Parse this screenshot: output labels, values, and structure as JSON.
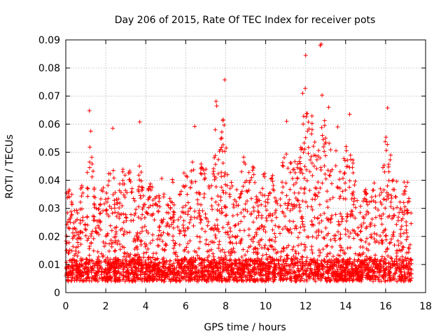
{
  "chart_data": {
    "type": "scatter",
    "title": "Day 206 of 2015, Rate Of TEC Index for receiver pots",
    "xlabel": "GPS time / hours",
    "ylabel": "ROTI / TECUs",
    "xlim": [
      0,
      18
    ],
    "ylim": [
      0,
      0.09
    ],
    "xticks": [
      0,
      2,
      4,
      6,
      8,
      10,
      12,
      14,
      16,
      18
    ],
    "yticks": [
      0,
      0.01,
      0.02,
      0.03,
      0.04,
      0.05,
      0.06,
      0.07,
      0.08,
      0.09
    ],
    "grid": true,
    "marker": "+",
    "color": "#ff0000",
    "x_data_range": [
      0,
      17.3
    ],
    "envelope": [
      [
        0.0,
        0.045
      ],
      [
        0.5,
        0.042
      ],
      [
        1.0,
        0.048
      ],
      [
        1.2,
        0.065
      ],
      [
        1.6,
        0.04
      ],
      [
        2.0,
        0.044
      ],
      [
        2.3,
        0.058
      ],
      [
        2.6,
        0.046
      ],
      [
        2.8,
        0.052
      ],
      [
        3.0,
        0.055
      ],
      [
        3.5,
        0.045
      ],
      [
        3.7,
        0.061
      ],
      [
        4.0,
        0.042
      ],
      [
        4.5,
        0.052
      ],
      [
        5.0,
        0.046
      ],
      [
        5.5,
        0.047
      ],
      [
        6.0,
        0.05
      ],
      [
        6.4,
        0.059
      ],
      [
        6.8,
        0.055
      ],
      [
        7.3,
        0.058
      ],
      [
        7.5,
        0.068
      ],
      [
        7.9,
        0.076
      ],
      [
        8.2,
        0.05
      ],
      [
        8.8,
        0.055
      ],
      [
        9.3,
        0.053
      ],
      [
        9.7,
        0.047
      ],
      [
        10.2,
        0.049
      ],
      [
        10.6,
        0.044
      ],
      [
        11.0,
        0.061
      ],
      [
        11.3,
        0.055
      ],
      [
        11.8,
        0.071
      ],
      [
        12.0,
        0.084
      ],
      [
        12.5,
        0.065
      ],
      [
        12.75,
        0.088
      ],
      [
        12.9,
        0.07
      ],
      [
        13.2,
        0.066
      ],
      [
        13.8,
        0.06
      ],
      [
        14.2,
        0.063
      ],
      [
        14.6,
        0.045
      ],
      [
        15.0,
        0.042
      ],
      [
        15.5,
        0.045
      ],
      [
        16.1,
        0.066
      ],
      [
        16.5,
        0.049
      ],
      [
        17.0,
        0.046
      ],
      [
        17.3,
        0.045
      ]
    ],
    "outliers": [
      {
        "x": 12.78,
        "y": 0.0885
      },
      {
        "x": 12.73,
        "y": 0.088
      },
      {
        "x": 12.0,
        "y": 0.0845
      },
      {
        "x": 7.95,
        "y": 0.0758
      },
      {
        "x": 11.85,
        "y": 0.071
      },
      {
        "x": 12.82,
        "y": 0.0703
      },
      {
        "x": 7.52,
        "y": 0.0681
      },
      {
        "x": 7.55,
        "y": 0.0665
      },
      {
        "x": 13.15,
        "y": 0.066
      },
      {
        "x": 16.1,
        "y": 0.0658
      },
      {
        "x": 1.18,
        "y": 0.0648
      },
      {
        "x": 14.2,
        "y": 0.0635
      },
      {
        "x": 11.9,
        "y": 0.0628
      },
      {
        "x": 3.7,
        "y": 0.0608
      },
      {
        "x": 11.05,
        "y": 0.061
      },
      {
        "x": 12.95,
        "y": 0.0595
      },
      {
        "x": 6.45,
        "y": 0.0592
      },
      {
        "x": 7.48,
        "y": 0.058
      },
      {
        "x": 2.35,
        "y": 0.0585
      },
      {
        "x": 1.25,
        "y": 0.0575
      },
      {
        "x": 13.6,
        "y": 0.059
      }
    ],
    "baseline_range": [
      0.004,
      0.012
    ]
  }
}
